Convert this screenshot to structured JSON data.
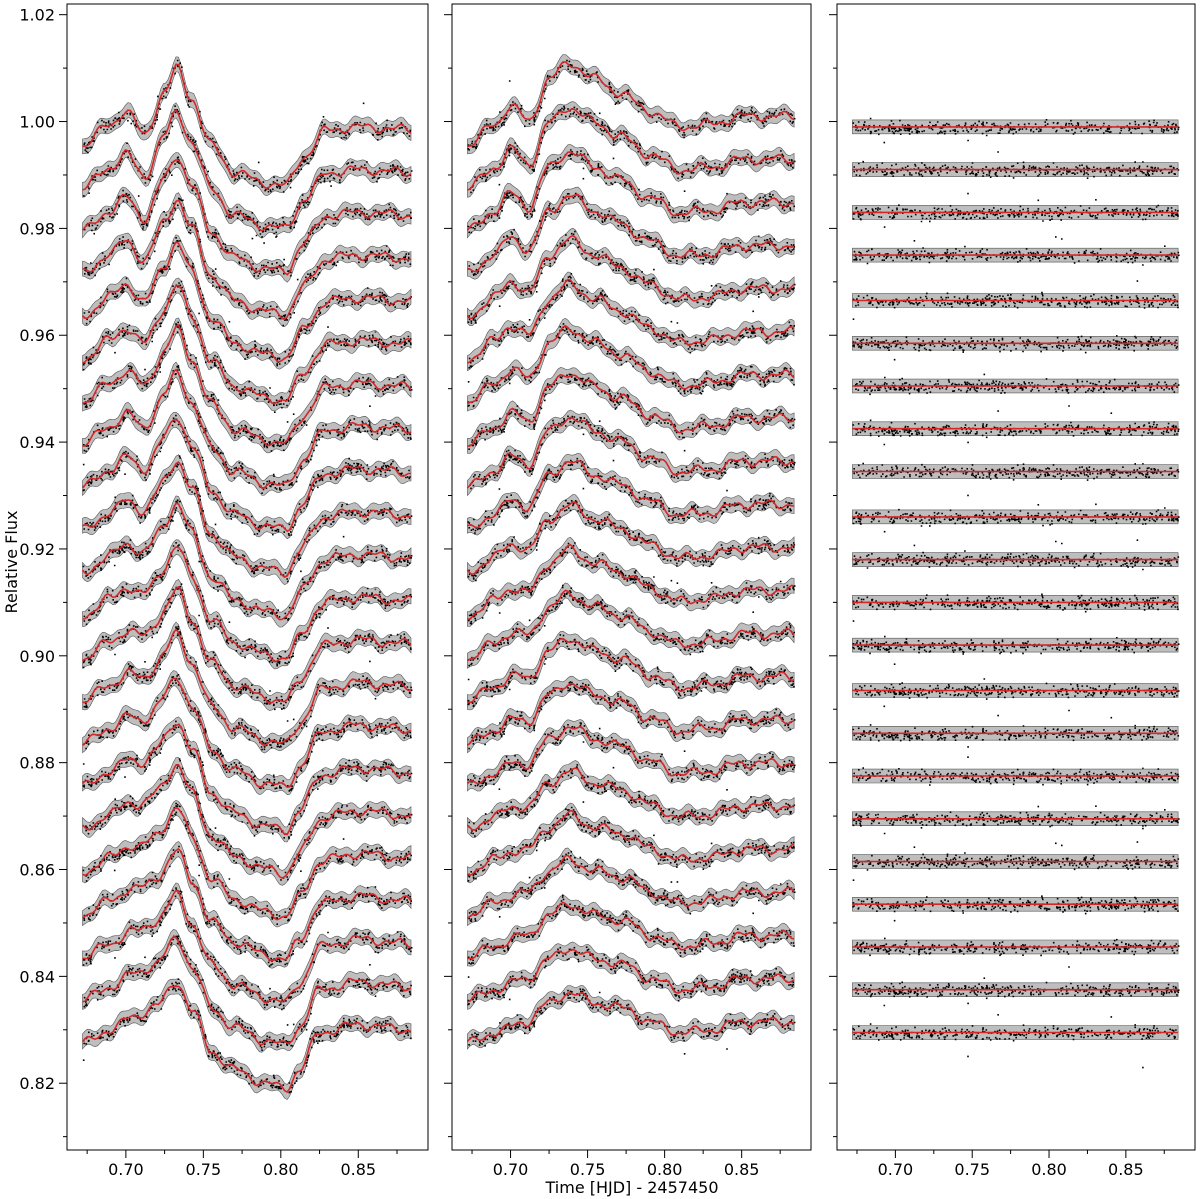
{
  "chart_data": {
    "type": "line",
    "xlabel": "Time [HJD] - 2457450",
    "ylabel": "Relative Flux",
    "xlim": [
      0.662,
      0.895
    ],
    "ylim": [
      0.8075,
      1.022
    ],
    "x_ticks": [
      0.7,
      0.75,
      0.8,
      0.85
    ],
    "x_tick_labels": [
      "0.70",
      "0.75",
      "0.80",
      "0.85"
    ],
    "y_ticks": [
      0.82,
      0.84,
      0.86,
      0.88,
      0.9,
      0.92,
      0.94,
      0.96,
      0.98,
      1.0,
      1.02
    ],
    "y_tick_labels": [
      "0.82",
      "0.84",
      "0.86",
      "0.88",
      "0.90",
      "0.92",
      "0.94",
      "0.96",
      "0.98",
      "1.00",
      "1.02"
    ],
    "x_range_data": [
      0.672,
      0.884
    ],
    "grid": false,
    "colors": {
      "points": "#000000",
      "model": "#d62728",
      "band": "#888888"
    },
    "panels": [
      {
        "offsets": [
          0.9995,
          0.9915,
          0.9835,
          0.9755,
          0.9675,
          0.9595,
          0.9515,
          0.9435,
          0.9355,
          0.9275,
          0.9195,
          0.9115,
          0.9035,
          0.8955,
          0.8875,
          0.8795,
          0.8715,
          0.8635,
          0.8555,
          0.8475,
          0.8395,
          0.8315
        ],
        "top_curve": [
          [
            0.672,
            -0.004
          ],
          [
            0.69,
            0.0
          ],
          [
            0.7,
            0.0025
          ],
          [
            0.712,
            -0.002
          ],
          [
            0.725,
            0.006
          ],
          [
            0.733,
            0.0105
          ],
          [
            0.742,
            0.005
          ],
          [
            0.755,
            -0.004
          ],
          [
            0.77,
            -0.009
          ],
          [
            0.79,
            -0.011
          ],
          [
            0.803,
            -0.0115
          ],
          [
            0.815,
            -0.006
          ],
          [
            0.83,
            -0.001
          ],
          [
            0.85,
            -0.0005
          ],
          [
            0.884,
            -0.001
          ]
        ],
        "bottom_curve": [
          [
            0.672,
            -0.004
          ],
          [
            0.69,
            -0.0015
          ],
          [
            0.705,
            0.001
          ],
          [
            0.72,
            0.003
          ],
          [
            0.733,
            0.0075
          ],
          [
            0.743,
            0.002
          ],
          [
            0.755,
            -0.0055
          ],
          [
            0.77,
            -0.009
          ],
          [
            0.79,
            -0.0115
          ],
          [
            0.803,
            -0.0125
          ],
          [
            0.812,
            -0.009
          ],
          [
            0.825,
            -0.002
          ],
          [
            0.85,
            -0.0005
          ],
          [
            0.884,
            -0.0015
          ]
        ]
      },
      {
        "offsets": [
          0.9995,
          0.9915,
          0.9835,
          0.9755,
          0.9675,
          0.9595,
          0.9515,
          0.9435,
          0.9355,
          0.9275,
          0.9195,
          0.9115,
          0.9035,
          0.8955,
          0.8875,
          0.8795,
          0.8715,
          0.8635,
          0.8555,
          0.8475,
          0.8395,
          0.8315
        ],
        "top_curve": [
          [
            0.672,
            -0.004
          ],
          [
            0.69,
            0.0
          ],
          [
            0.7,
            0.0035
          ],
          [
            0.712,
            0.0005
          ],
          [
            0.725,
            0.0085
          ],
          [
            0.738,
            0.0115
          ],
          [
            0.755,
            0.0085
          ],
          [
            0.77,
            0.006
          ],
          [
            0.79,
            0.0025
          ],
          [
            0.81,
            -0.0005
          ],
          [
            0.83,
            0.0
          ],
          [
            0.85,
            0.0015
          ],
          [
            0.884,
            0.0015
          ]
        ],
        "bottom_curve": [
          [
            0.672,
            -0.004
          ],
          [
            0.69,
            -0.002
          ],
          [
            0.71,
            0.0
          ],
          [
            0.725,
            0.0035
          ],
          [
            0.738,
            0.0055
          ],
          [
            0.755,
            0.0035
          ],
          [
            0.775,
            0.0025
          ],
          [
            0.79,
            0.0
          ],
          [
            0.81,
            -0.002
          ],
          [
            0.83,
            -0.0015
          ],
          [
            0.85,
            0.0
          ],
          [
            0.884,
            0.0
          ]
        ]
      },
      {
        "offsets": [
          0.999,
          0.991,
          0.983,
          0.975,
          0.9665,
          0.9585,
          0.9505,
          0.9425,
          0.9345,
          0.926,
          0.918,
          0.91,
          0.902,
          0.8935,
          0.8855,
          0.8775,
          0.8695,
          0.8615,
          0.8535,
          0.8455,
          0.8375,
          0.8295
        ],
        "flat": true
      }
    ]
  }
}
